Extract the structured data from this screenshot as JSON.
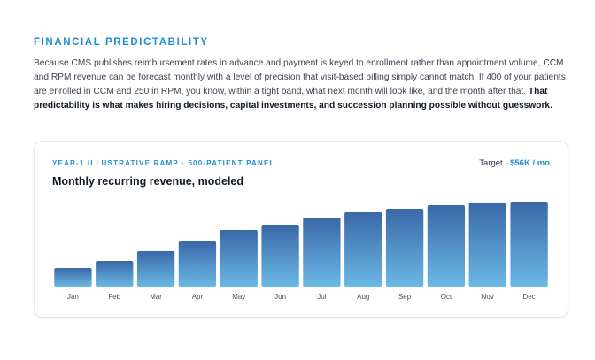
{
  "section": {
    "eyebrow": "FINANCIAL PREDICTABILITY",
    "para_part1": "Because CMS publishes reimbursement rates in advance and payment is keyed to enrollment rather than appointment volume, CCM and RPM revenue can be forecast monthly with a level of precision that visit-based billing simply cannot match. If 400 of your patients are enrolled in CCM and 250 in RPM, you know, within a tight band, what next month will look like, and the month after that. ",
    "para_bold": "That predictability is what makes hiring decisions, capital investments, and succession planning possible without guesswork."
  },
  "card": {
    "eyebrow": "YEAR-1 ILLUSTRATIVE RAMP · 500-PATIENT PANEL",
    "target_label": "Target · ",
    "target_value": "$56K / mo",
    "title": "Monthly recurring revenue, modeled"
  },
  "colors": {
    "accent": "#1f8fd0",
    "bar_top": "#3a68a8",
    "bar_bottom": "#6ab8e4"
  },
  "chart_data": {
    "type": "bar",
    "categories": [
      "Jan",
      "Feb",
      "Mar",
      "Apr",
      "May",
      "Jun",
      "Jul",
      "Aug",
      "Sep",
      "Oct",
      "Nov",
      "Dec"
    ],
    "values": [
      21,
      29,
      40,
      51,
      64,
      70,
      78,
      84,
      88,
      92,
      95,
      96
    ],
    "ylim": [
      0,
      100
    ],
    "grid": false,
    "xlabel": "",
    "ylabel": ""
  }
}
